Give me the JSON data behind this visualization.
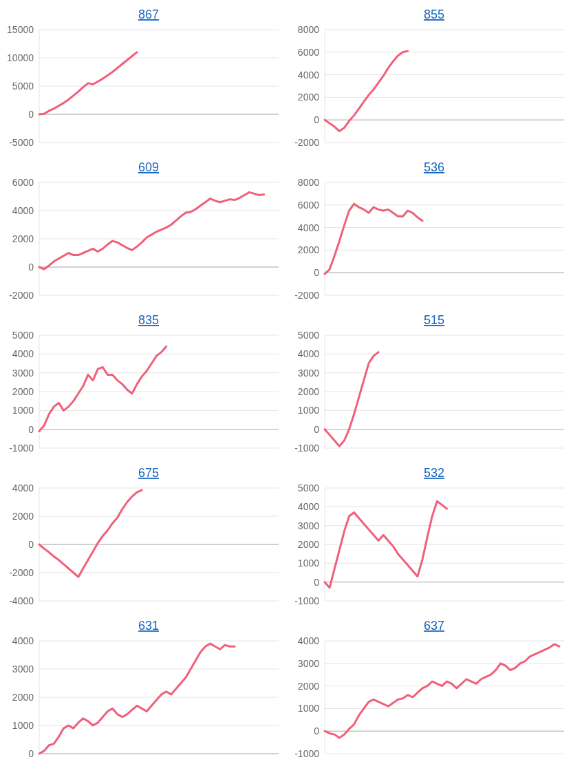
{
  "chart_data": [
    {
      "type": "line",
      "title": "867",
      "categories": [
        null,
        null,
        null,
        null,
        null,
        null,
        null,
        null,
        null,
        null,
        null,
        null,
        null,
        null,
        null,
        null,
        null,
        null,
        null,
        null,
        null,
        null,
        null,
        null,
        null,
        null,
        null,
        null,
        null,
        null,
        null,
        null,
        null,
        null,
        null,
        null,
        null,
        null,
        null,
        null,
        null,
        null,
        null,
        null,
        null,
        null,
        null,
        null,
        null,
        null
      ],
      "series": [
        {
          "color": "#f0607a",
          "values": [
            0,
            100,
            600,
            1000,
            1500,
            2000,
            2600,
            3300,
            4000,
            4800,
            5500,
            5300,
            5800,
            6300,
            6900,
            7500,
            8200,
            8900,
            9600,
            10300,
            11000,
            null,
            null,
            null,
            null,
            null,
            null,
            null,
            null,
            null,
            null,
            null,
            null,
            null,
            null,
            null,
            null,
            null,
            null,
            null,
            null,
            null,
            null,
            null,
            null,
            null,
            null,
            null,
            null,
            null
          ]
        }
      ],
      "ylim": [
        -5000,
        15000
      ],
      "yticks": [
        -5000,
        0,
        5000,
        10000,
        15000
      ],
      "grid": "y",
      "tick_labels": "y",
      "line_style": "solid",
      "marker": "none"
    },
    {
      "type": "line",
      "title": "855",
      "categories": [
        null,
        null,
        null,
        null,
        null,
        null,
        null,
        null,
        null,
        null,
        null,
        null,
        null,
        null,
        null,
        null,
        null,
        null,
        null,
        null,
        null,
        null,
        null,
        null,
        null,
        null,
        null,
        null,
        null,
        null,
        null,
        null,
        null,
        null,
        null,
        null,
        null,
        null,
        null,
        null,
        null,
        null,
        null,
        null,
        null,
        null,
        null,
        null,
        null,
        null
      ],
      "series": [
        {
          "color": "#f0607a",
          "values": [
            0,
            -300,
            -600,
            -1000,
            -700,
            -100,
            400,
            1000,
            1600,
            2200,
            2700,
            3300,
            3900,
            4600,
            5200,
            5700,
            6000,
            6100,
            null,
            null,
            null,
            null,
            null,
            null,
            null,
            null,
            null,
            null,
            null,
            null,
            null,
            null,
            null,
            null,
            null,
            null,
            null,
            null,
            null,
            null,
            null,
            null,
            null,
            null,
            null,
            null,
            null,
            null,
            null,
            null
          ]
        }
      ],
      "ylim": [
        -2000,
        8000
      ],
      "yticks": [
        -2000,
        0,
        2000,
        4000,
        6000,
        8000
      ],
      "grid": "y",
      "tick_labels": "y",
      "line_style": "solid",
      "marker": "none"
    },
    {
      "type": "line",
      "title": "609",
      "categories": [
        null,
        null,
        null,
        null,
        null,
        null,
        null,
        null,
        null,
        null,
        null,
        null,
        null,
        null,
        null,
        null,
        null,
        null,
        null,
        null,
        null,
        null,
        null,
        null,
        null,
        null,
        null,
        null,
        null,
        null,
        null,
        null,
        null,
        null,
        null,
        null,
        null,
        null,
        null,
        null,
        null,
        null,
        null,
        null,
        null,
        null,
        null,
        null,
        null,
        null
      ],
      "series": [
        {
          "color": "#f0607a",
          "values": [
            0,
            -150,
            100,
            400,
            600,
            800,
            1000,
            850,
            850,
            1000,
            1150,
            1300,
            1100,
            1300,
            1600,
            1850,
            1750,
            1550,
            1350,
            1200,
            1450,
            1750,
            2100,
            2300,
            2500,
            2650,
            2800,
            3000,
            3300,
            3600,
            3850,
            3900,
            4100,
            4350,
            4600,
            4850,
            4700,
            4600,
            4700,
            4800,
            4750,
            4900,
            5100,
            5300,
            5200,
            5100,
            5150,
            null,
            null,
            null
          ]
        }
      ],
      "ylim": [
        -2000,
        6000
      ],
      "yticks": [
        -2000,
        0,
        2000,
        4000,
        6000
      ],
      "grid": "y",
      "tick_labels": "y",
      "line_style": "solid",
      "marker": "none"
    },
    {
      "type": "line",
      "title": "536",
      "categories": [
        null,
        null,
        null,
        null,
        null,
        null,
        null,
        null,
        null,
        null,
        null,
        null,
        null,
        null,
        null,
        null,
        null,
        null,
        null,
        null,
        null,
        null,
        null,
        null,
        null,
        null,
        null,
        null,
        null,
        null,
        null,
        null,
        null,
        null,
        null,
        null,
        null,
        null,
        null,
        null,
        null,
        null,
        null,
        null,
        null,
        null,
        null,
        null,
        null,
        null
      ],
      "series": [
        {
          "color": "#f0607a",
          "values": [
            -100,
            300,
            1500,
            2800,
            4200,
            5500,
            6100,
            5800,
            5600,
            5300,
            5800,
            5600,
            5500,
            5600,
            5300,
            5000,
            5000,
            5500,
            5300,
            4900,
            4600,
            null,
            null,
            null,
            null,
            null,
            null,
            null,
            null,
            null,
            null,
            null,
            null,
            null,
            null,
            null,
            null,
            null,
            null,
            null,
            null,
            null,
            null,
            null,
            null,
            null,
            null,
            null,
            null,
            null
          ]
        }
      ],
      "ylim": [
        -2000,
        8000
      ],
      "yticks": [
        -2000,
        0,
        2000,
        4000,
        6000,
        8000
      ],
      "grid": "y",
      "tick_labels": "y",
      "line_style": "solid",
      "marker": "none"
    },
    {
      "type": "line",
      "title": "835",
      "categories": [
        null,
        null,
        null,
        null,
        null,
        null,
        null,
        null,
        null,
        null,
        null,
        null,
        null,
        null,
        null,
        null,
        null,
        null,
        null,
        null,
        null,
        null,
        null,
        null,
        null,
        null,
        null,
        null,
        null,
        null,
        null,
        null,
        null,
        null,
        null,
        null,
        null,
        null,
        null,
        null,
        null,
        null,
        null,
        null,
        null,
        null,
        null,
        null,
        null,
        null
      ],
      "series": [
        {
          "color": "#f0607a",
          "values": [
            -100,
            200,
            800,
            1200,
            1400,
            1000,
            1200,
            1500,
            1900,
            2300,
            2900,
            2600,
            3200,
            3300,
            2900,
            2900,
            2600,
            2400,
            2100,
            1900,
            2400,
            2800,
            3100,
            3500,
            3900,
            4100,
            4400,
            null,
            null,
            null,
            null,
            null,
            null,
            null,
            null,
            null,
            null,
            null,
            null,
            null,
            null,
            null,
            null,
            null,
            null,
            null,
            null,
            null,
            null,
            null
          ]
        }
      ],
      "ylim": [
        -1000,
        5000
      ],
      "yticks": [
        -1000,
        0,
        1000,
        2000,
        3000,
        4000,
        5000
      ],
      "grid": "y",
      "tick_labels": "y",
      "line_style": "solid",
      "marker": "none"
    },
    {
      "type": "line",
      "title": "515",
      "categories": [
        null,
        null,
        null,
        null,
        null,
        null,
        null,
        null,
        null,
        null,
        null,
        null,
        null,
        null,
        null,
        null,
        null,
        null,
        null,
        null,
        null,
        null,
        null,
        null,
        null,
        null,
        null,
        null,
        null,
        null,
        null,
        null,
        null,
        null,
        null,
        null,
        null,
        null,
        null,
        null,
        null,
        null,
        null,
        null,
        null,
        null,
        null,
        null,
        null,
        null
      ],
      "series": [
        {
          "color": "#f0607a",
          "values": [
            0,
            -300,
            -600,
            -900,
            -600,
            0,
            800,
            1700,
            2600,
            3500,
            3900,
            4100,
            null,
            null,
            null,
            null,
            null,
            null,
            null,
            null,
            null,
            null,
            null,
            null,
            null,
            null,
            null,
            null,
            null,
            null,
            null,
            null,
            null,
            null,
            null,
            null,
            null,
            null,
            null,
            null,
            null,
            null,
            null,
            null,
            null,
            null,
            null,
            null,
            null,
            null
          ]
        }
      ],
      "ylim": [
        -1000,
        5000
      ],
      "yticks": [
        -1000,
        0,
        1000,
        2000,
        3000,
        4000,
        5000
      ],
      "grid": "y",
      "tick_labels": "y",
      "line_style": "solid",
      "marker": "none"
    },
    {
      "type": "line",
      "title": "675",
      "categories": [
        null,
        null,
        null,
        null,
        null,
        null,
        null,
        null,
        null,
        null,
        null,
        null,
        null,
        null,
        null,
        null,
        null,
        null,
        null,
        null,
        null,
        null,
        null,
        null,
        null,
        null,
        null,
        null,
        null,
        null,
        null,
        null,
        null,
        null,
        null,
        null,
        null,
        null,
        null,
        null,
        null,
        null,
        null,
        null,
        null,
        null,
        null,
        null,
        null,
        null
      ],
      "series": [
        {
          "color": "#f0607a",
          "values": [
            0,
            -300,
            -550,
            -850,
            -1100,
            -1400,
            -1700,
            -2000,
            -2300,
            -1700,
            -1100,
            -500,
            100,
            600,
            1000,
            1500,
            1900,
            2500,
            3000,
            3400,
            3700,
            3850,
            null,
            null,
            null,
            null,
            null,
            null,
            null,
            null,
            null,
            null,
            null,
            null,
            null,
            null,
            null,
            null,
            null,
            null,
            null,
            null,
            null,
            null,
            null,
            null,
            null,
            null,
            null,
            null
          ]
        }
      ],
      "ylim": [
        -4000,
        4000
      ],
      "yticks": [
        -4000,
        -2000,
        0,
        2000,
        4000
      ],
      "grid": "y",
      "tick_labels": "y",
      "line_style": "solid",
      "marker": "none"
    },
    {
      "type": "line",
      "title": "532",
      "categories": [
        null,
        null,
        null,
        null,
        null,
        null,
        null,
        null,
        null,
        null,
        null,
        null,
        null,
        null,
        null,
        null,
        null,
        null,
        null,
        null,
        null,
        null,
        null,
        null,
        null,
        null,
        null,
        null,
        null,
        null,
        null,
        null,
        null,
        null,
        null,
        null,
        null,
        null,
        null,
        null,
        null,
        null,
        null,
        null,
        null,
        null,
        null,
        null,
        null,
        null
      ],
      "series": [
        {
          "color": "#f0607a",
          "values": [
            0,
            -300,
            700,
            1700,
            2700,
            3500,
            3700,
            3400,
            3100,
            2800,
            2500,
            2200,
            2500,
            2200,
            1900,
            1500,
            1200,
            900,
            600,
            300,
            1200,
            2400,
            3500,
            4300,
            4100,
            3900,
            null,
            null,
            null,
            null,
            null,
            null,
            null,
            null,
            null,
            null,
            null,
            null,
            null,
            null,
            null,
            null,
            null,
            null,
            null,
            null,
            null,
            null,
            null,
            null
          ]
        }
      ],
      "ylim": [
        -1000,
        5000
      ],
      "yticks": [
        -1000,
        0,
        1000,
        2000,
        3000,
        4000,
        5000
      ],
      "grid": "y",
      "tick_labels": "y",
      "line_style": "solid",
      "marker": "none"
    },
    {
      "type": "line",
      "title": "631",
      "categories": [
        null,
        null,
        null,
        null,
        null,
        null,
        null,
        null,
        null,
        null,
        null,
        null,
        null,
        null,
        null,
        null,
        null,
        null,
        null,
        null,
        null,
        null,
        null,
        null,
        null,
        null,
        null,
        null,
        null,
        null,
        null,
        null,
        null,
        null,
        null,
        null,
        null,
        null,
        null,
        null,
        null,
        null,
        null,
        null,
        null,
        null,
        null,
        null,
        null,
        null
      ],
      "series": [
        {
          "color": "#f0607a",
          "values": [
            0,
            100,
            300,
            350,
            600,
            900,
            1000,
            900,
            1100,
            1250,
            1150,
            1000,
            1100,
            1300,
            1500,
            1600,
            1400,
            1300,
            1400,
            1550,
            1700,
            1600,
            1500,
            1700,
            1900,
            2100,
            2200,
            2100,
            2300,
            2500,
            2700,
            3000,
            3300,
            3600,
            3800,
            3900,
            3800,
            3700,
            3850,
            3800,
            3800,
            null,
            null,
            null,
            null,
            null,
            null,
            null,
            null,
            null
          ]
        }
      ],
      "ylim": [
        0,
        4000
      ],
      "yticks": [
        0,
        1000,
        2000,
        3000,
        4000
      ],
      "grid": "y",
      "tick_labels": "y",
      "line_style": "solid",
      "marker": "none"
    },
    {
      "type": "line",
      "title": "637",
      "categories": [
        null,
        null,
        null,
        null,
        null,
        null,
        null,
        null,
        null,
        null,
        null,
        null,
        null,
        null,
        null,
        null,
        null,
        null,
        null,
        null,
        null,
        null,
        null,
        null,
        null,
        null,
        null,
        null,
        null,
        null,
        null,
        null,
        null,
        null,
        null,
        null,
        null,
        null,
        null,
        null,
        null,
        null,
        null,
        null,
        null,
        null,
        null,
        null,
        null,
        null
      ],
      "series": [
        {
          "color": "#f0607a",
          "values": [
            0,
            -100,
            -150,
            -300,
            -150,
            100,
            300,
            700,
            1000,
            1300,
            1400,
            1300,
            1200,
            1100,
            1250,
            1400,
            1450,
            1600,
            1500,
            1700,
            1900,
            2000,
            2200,
            2100,
            2000,
            2200,
            2100,
            1900,
            2100,
            2300,
            2200,
            2100,
            2300,
            2400,
            2500,
            2700,
            3000,
            2900,
            2700,
            2800,
            3000,
            3100,
            3300,
            3400,
            3500,
            3600,
            3700,
            3850,
            3750,
            null
          ]
        }
      ],
      "ylim": [
        -1000,
        4000
      ],
      "yticks": [
        -1000,
        0,
        1000,
        2000,
        3000,
        4000
      ],
      "grid": "y",
      "tick_labels": "y",
      "line_style": "solid",
      "marker": "none"
    }
  ]
}
